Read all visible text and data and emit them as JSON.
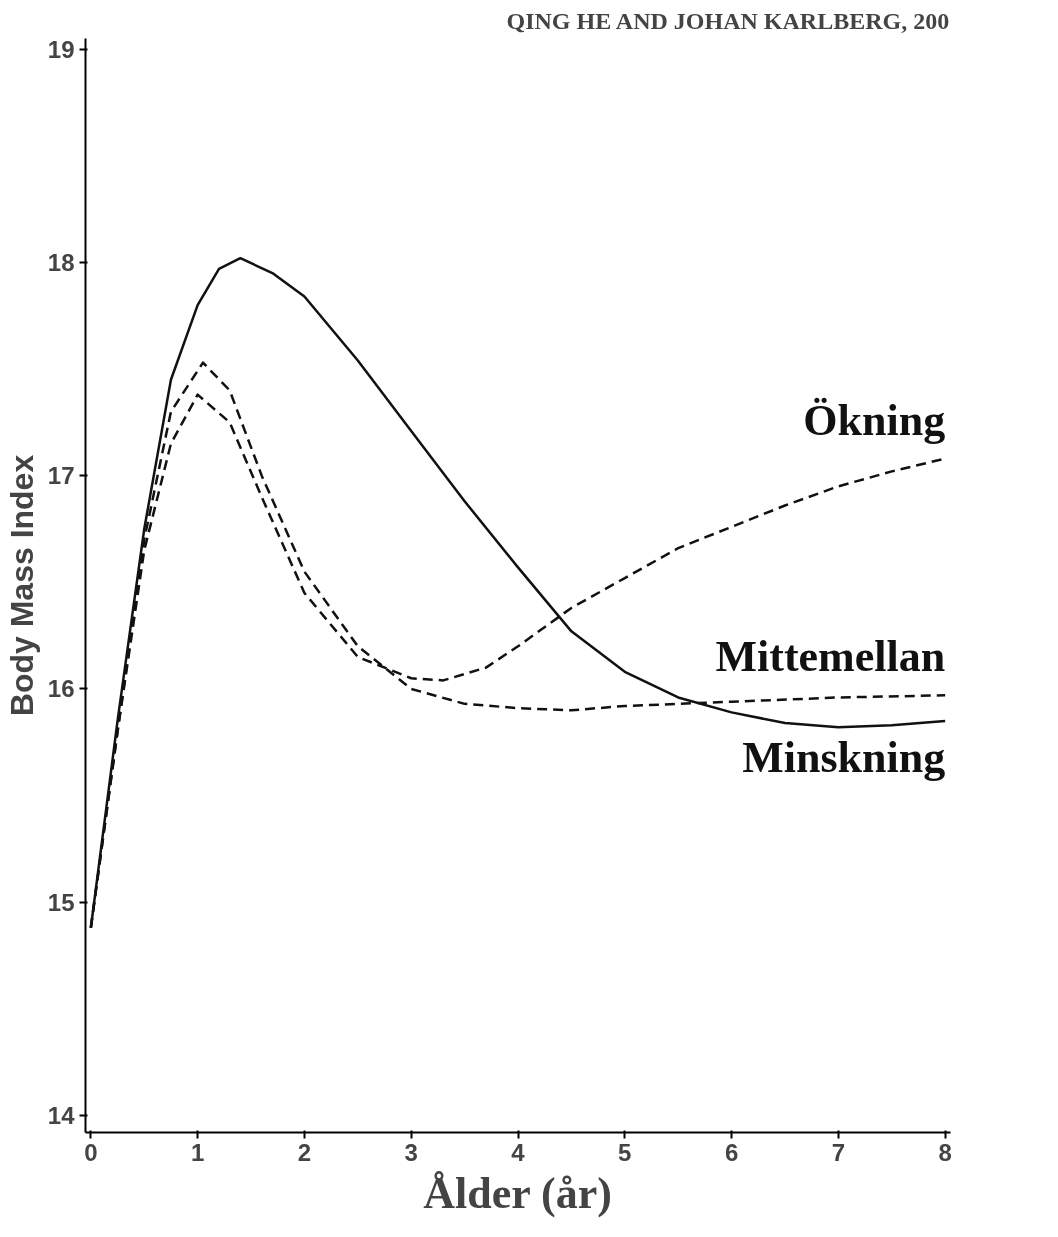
{
  "chart_data": {
    "type": "line",
    "xlabel": "Ålder (år)",
    "ylabel": "Body Mass Index",
    "annotations": [
      "QING HE AND JOHAN KARLBERG, 200"
    ],
    "xlim": [
      -0.05,
      8.05
    ],
    "ylim": [
      13.92,
      19.05
    ],
    "xticks": [
      0,
      1,
      2,
      3,
      4,
      5,
      6,
      7,
      8
    ],
    "yticks": [
      14,
      15,
      16,
      17,
      18,
      19
    ],
    "grid": false,
    "legend": false,
    "marker": "none",
    "series": [
      {
        "name": "Ökning",
        "color": "#111111",
        "line_style": "dashed",
        "x": [
          0,
          0.25,
          0.5,
          0.75,
          1,
          1.3,
          1.6,
          2,
          2.5,
          3,
          3.3,
          3.7,
          4,
          4.5,
          5,
          5.5,
          6,
          6.5,
          7,
          7.5,
          8
        ],
        "values": [
          14.88,
          15.8,
          16.65,
          17.15,
          17.38,
          17.25,
          16.9,
          16.45,
          16.15,
          16.05,
          16.04,
          16.1,
          16.2,
          16.38,
          16.52,
          16.66,
          16.76,
          16.86,
          16.95,
          17.02,
          17.08
        ]
      },
      {
        "name": "Mittemellan",
        "color": "#111111",
        "line_style": "dashed",
        "x": [
          0,
          0.25,
          0.5,
          0.75,
          1.05,
          1.3,
          1.6,
          2,
          2.5,
          3,
          3.5,
          4,
          4.5,
          5,
          6,
          7,
          8
        ],
        "values": [
          14.88,
          15.8,
          16.7,
          17.3,
          17.53,
          17.4,
          17.0,
          16.55,
          16.2,
          16.0,
          15.93,
          15.91,
          15.9,
          15.92,
          15.94,
          15.96,
          15.97
        ]
      },
      {
        "name": "Minskning",
        "color": "#111111",
        "line_style": "solid",
        "x": [
          0,
          0.25,
          0.5,
          0.75,
          1,
          1.2,
          1.4,
          1.7,
          2,
          2.5,
          3,
          3.5,
          4,
          4.5,
          5,
          5.5,
          6,
          6.5,
          7,
          7.5,
          8
        ],
        "values": [
          14.88,
          15.85,
          16.75,
          17.45,
          17.8,
          17.97,
          18.02,
          17.95,
          17.84,
          17.54,
          17.21,
          16.88,
          16.57,
          16.27,
          16.08,
          15.96,
          15.89,
          15.84,
          15.82,
          15.83,
          15.85
        ]
      }
    ]
  }
}
